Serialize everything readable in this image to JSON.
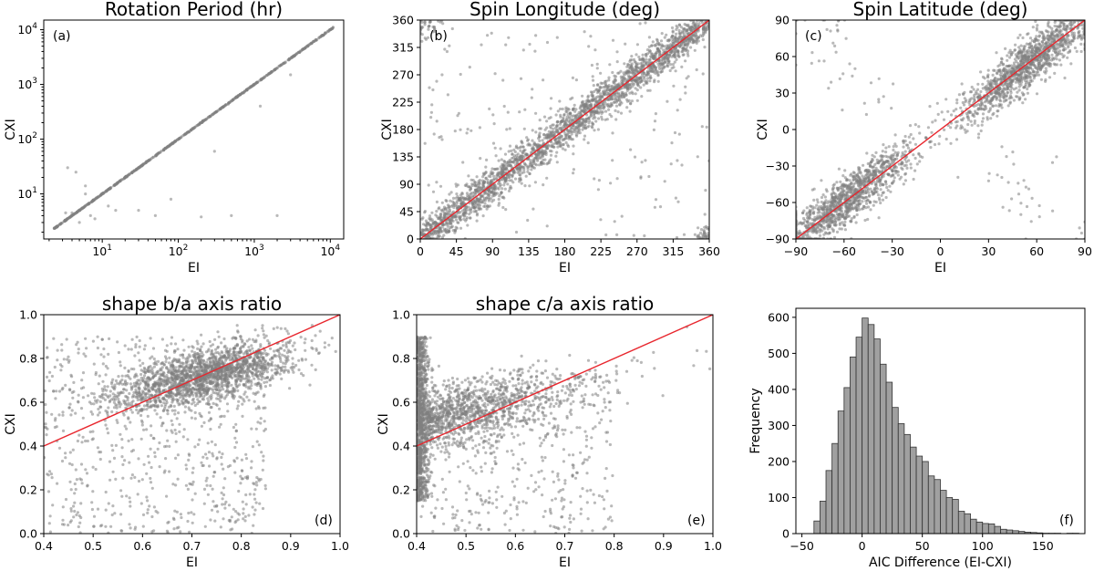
{
  "figure": {
    "point_color": "#808080",
    "fit_line_color": "#e8262d",
    "hist_fill": "#a0a0a0",
    "hist_edge": "#333333"
  },
  "chart_data": [
    {
      "id": "a",
      "type": "scatter",
      "title": "Rotation Period (hr)",
      "panel_label": "(a)",
      "xlabel": "EI",
      "ylabel": "CXI",
      "xscale": "log",
      "yscale": "log",
      "xlim": [
        1.7,
        15000
      ],
      "ylim": [
        1.5,
        15000
      ],
      "xticks": [
        10,
        100,
        1000,
        10000
      ],
      "yticks": [
        10,
        100,
        1000,
        10000
      ],
      "xtick_labels": [
        [
          "10",
          "1"
        ],
        [
          "10",
          "2"
        ],
        [
          "10",
          "3"
        ],
        [
          "10",
          "4"
        ]
      ],
      "ytick_labels": [
        [
          "10",
          "1"
        ],
        [
          "10",
          "2"
        ],
        [
          "10",
          "3"
        ],
        [
          "10",
          "4"
        ]
      ],
      "points_on_line_range": [
        2.3,
        11000
      ],
      "outliers": [
        [
          3.5,
          30
        ],
        [
          5,
          5
        ],
        [
          4,
          4.5
        ],
        [
          6,
          14
        ],
        [
          7,
          4
        ],
        [
          9,
          9
        ],
        [
          12,
          6
        ],
        [
          4.5,
          25
        ],
        [
          8,
          3.5
        ],
        [
          15,
          5
        ],
        [
          30,
          5
        ],
        [
          50,
          4
        ],
        [
          80,
          8
        ],
        [
          200,
          3.8
        ],
        [
          300,
          60
        ],
        [
          500,
          4
        ],
        [
          1200,
          400
        ],
        [
          2000,
          4
        ],
        [
          3000,
          1500
        ],
        [
          5,
          3
        ],
        [
          6,
          10
        ],
        [
          3.3,
          4.5
        ]
      ],
      "fit_line": false
    },
    {
      "id": "b",
      "type": "scatter",
      "title": "Spin Longitude (deg)",
      "panel_label": "(b)",
      "xlabel": "EI",
      "ylabel": "CXI",
      "xlim": [
        0,
        360
      ],
      "ylim": [
        0,
        360
      ],
      "xticks": [
        0,
        45,
        90,
        135,
        180,
        225,
        270,
        315,
        360
      ],
      "yticks": [
        0,
        45,
        90,
        135,
        180,
        225,
        270,
        315,
        360
      ],
      "spread": 16,
      "wrap": true,
      "fit_line": [
        [
          0,
          0
        ],
        [
          360,
          360
        ]
      ]
    },
    {
      "id": "c",
      "type": "scatter",
      "title": "Spin Latitude (deg)",
      "panel_label": "(c)",
      "xlabel": "EI",
      "ylabel": "CXI",
      "xlim": [
        -90,
        90
      ],
      "ylim": [
        -90,
        90
      ],
      "xticks": [
        -90,
        -60,
        -30,
        0,
        30,
        60,
        90
      ],
      "yticks": [
        -90,
        -60,
        -30,
        0,
        30,
        60,
        90
      ],
      "spread": 10,
      "bimodal": true,
      "fit_line": [
        [
          -90,
          -90
        ],
        [
          90,
          90
        ]
      ]
    },
    {
      "id": "d",
      "type": "scatter",
      "title": "shape b/a axis ratio",
      "panel_label": "(d)",
      "xlabel": "EI",
      "ylabel": "CXI",
      "xlim": [
        0.4,
        1.0
      ],
      "ylim": [
        0.0,
        1.0
      ],
      "xticks": [
        0.4,
        0.5,
        0.6,
        0.7,
        0.8,
        0.9,
        1.0
      ],
      "yticks": [
        0.0,
        0.2,
        0.4,
        0.6,
        0.8,
        1.0
      ],
      "cluster_center": [
        0.72,
        0.72
      ],
      "fit_line": [
        [
          0.4,
          0.4
        ],
        [
          1.0,
          1.0
        ]
      ]
    },
    {
      "id": "e",
      "type": "scatter",
      "title": "shape c/a axis ratio",
      "panel_label": "(e)",
      "xlabel": "EI",
      "ylabel": "CXI",
      "xlim": [
        0.4,
        1.0
      ],
      "ylim": [
        0.0,
        1.0
      ],
      "xticks": [
        0.4,
        0.5,
        0.6,
        0.7,
        0.8,
        0.9,
        1.0
      ],
      "yticks": [
        0.0,
        0.2,
        0.4,
        0.6,
        0.8,
        1.0
      ],
      "cluster_center": [
        0.5,
        0.55
      ],
      "fit_line": [
        [
          0.4,
          0.4
        ],
        [
          1.0,
          1.0
        ]
      ]
    },
    {
      "id": "f",
      "type": "bar",
      "title": "",
      "panel_label": "(f)",
      "xlabel": "AIC Difference (EI-CXI)",
      "ylabel": "Frequency",
      "xlim": [
        -55,
        185
      ],
      "ylim": [
        0,
        625
      ],
      "xticks": [
        -50,
        0,
        50,
        100,
        150
      ],
      "yticks": [
        0,
        100,
        200,
        300,
        400,
        500,
        600
      ],
      "bin_start": -40,
      "bin_width": 5,
      "counts": [
        35,
        90,
        175,
        250,
        340,
        405,
        490,
        545,
        598,
        580,
        540,
        470,
        420,
        350,
        305,
        275,
        240,
        215,
        200,
        160,
        150,
        120,
        100,
        95,
        62,
        55,
        40,
        32,
        28,
        27,
        20,
        12,
        10,
        8,
        6,
        4,
        3,
        2,
        1,
        1,
        1,
        0,
        1,
        1,
        0
      ]
    }
  ]
}
